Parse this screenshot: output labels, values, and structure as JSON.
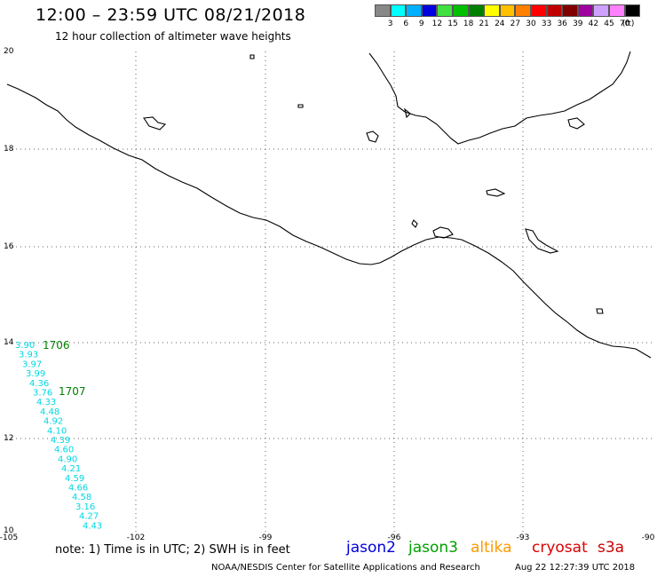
{
  "header": {
    "title": "12:00 – 23:59 UTC 08/21/2018",
    "subtitle": "12 hour collection of altimeter wave heights"
  },
  "legend": {
    "labels": [
      "3",
      "6",
      "9",
      "12",
      "15",
      "18",
      "21",
      "24",
      "27",
      "30",
      "33",
      "36",
      "39",
      "42",
      "45",
      "70",
      "(ft)"
    ],
    "colors": [
      "#888888",
      "#00ffff",
      "#00b0ff",
      "#0000e0",
      "#40e040",
      "#00c000",
      "#008000",
      "#ffff00",
      "#ffc000",
      "#ff8000",
      "#ff0000",
      "#c00000",
      "#800000",
      "#a000a0",
      "#d0a0ff",
      "#ff80ff",
      "#000000"
    ]
  },
  "axes": {
    "lon_labels": [
      "-105",
      "-102",
      "-99",
      "-96",
      "-93",
      "-90"
    ],
    "lat_labels": [
      "20",
      "18",
      "16",
      "14",
      "12",
      "10"
    ]
  },
  "track": {
    "pass_labels": [
      "1706",
      "1707"
    ],
    "pass_color": "#008000",
    "wave_color": "#00d8e0",
    "values": [
      "3.90",
      "3.93",
      "3.97",
      "3.99",
      "4.36",
      "3.76",
      "4.33",
      "4.48",
      "4.92",
      "4.10",
      "4.39",
      "4.60",
      "4.90",
      "4.21",
      "4.59",
      "4.66",
      "4.58",
      "3.16",
      "4.27",
      "4.43"
    ]
  },
  "footer": {
    "note": "note: 1) Time is in UTC; 2) SWH is in feet",
    "satellites": [
      {
        "name": "jason2",
        "color": "#0000dd"
      },
      {
        "name": "jason3",
        "color": "#00a000"
      },
      {
        "name": "altika",
        "color": "#ff9900"
      },
      {
        "name": "cryosat",
        "color": "#dd0000"
      },
      {
        "name": "s3a",
        "color": "#cc0000"
      }
    ],
    "credit": "NOAA/NESDIS Center for Satellite Applications and Research",
    "generated": "Aug 22 12:27:39 UTC 2018"
  }
}
